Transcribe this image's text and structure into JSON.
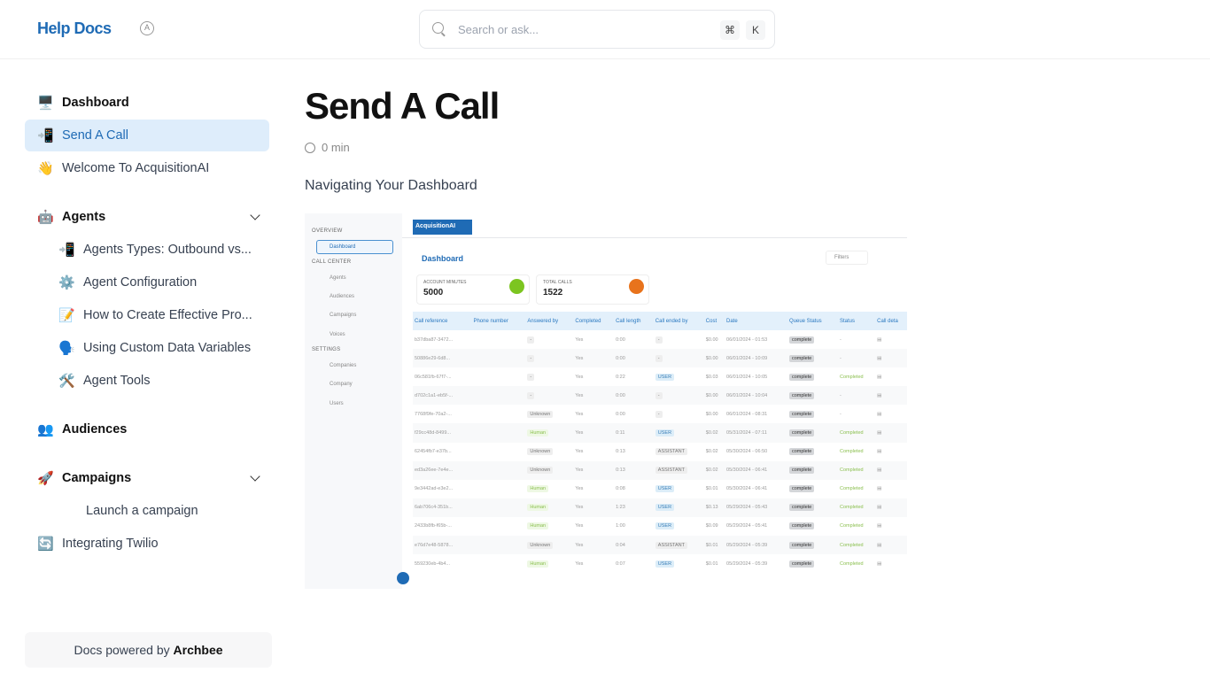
{
  "header": {
    "logo": "Help Docs",
    "search_placeholder": "Search or ask...",
    "kbd_cmd": "⌘",
    "kbd_k": "K"
  },
  "sidebar": {
    "items": [
      {
        "emoji": "🖥️",
        "label": "Dashboard",
        "type": "b"
      },
      {
        "emoji": "📲",
        "label": "Send A Call",
        "type": "active"
      },
      {
        "emoji": "👋",
        "label": "Welcome To AcquisitionAI",
        "type": ""
      },
      {
        "emoji": "🤖",
        "label": "Agents",
        "type": "b",
        "chevron": true,
        "gap": true
      },
      {
        "emoji": "📲",
        "label": "Agents Types: Outbound vs...",
        "type": "sub"
      },
      {
        "emoji": "⚙️",
        "label": "Agent Configuration",
        "type": "sub"
      },
      {
        "emoji": "📝",
        "label": "How to Create Effective Pro...",
        "type": "sub"
      },
      {
        "emoji": "🗣️",
        "label": "Using Custom Data Variables",
        "type": "sub"
      },
      {
        "emoji": "🛠️",
        "label": "Agent Tools",
        "type": "sub"
      },
      {
        "emoji": "👥",
        "label": "Audiences",
        "type": "b",
        "gap": true
      },
      {
        "emoji": "🚀",
        "label": "Campaigns",
        "type": "b",
        "chevron": true,
        "gap": true
      },
      {
        "emoji": "",
        "label": "Launch a campaign",
        "type": "sub2"
      },
      {
        "emoji": "🔄",
        "label": "Integrating Twilio",
        "type": ""
      }
    ]
  },
  "footer": {
    "prefix": "Docs powered by",
    "brand": "Archbee"
  },
  "article": {
    "title": "Send A Call",
    "read_time": "0 min",
    "intro": "Navigating Your Dashboard"
  },
  "screenshot": {
    "logo": "AcquisitionAI",
    "sections": {
      "overview": "OVERVIEW",
      "call_center": "CALL CENTER",
      "settings": "SETTINGS"
    },
    "nav": {
      "dashboard": "Dashboard",
      "agents": "Agents",
      "audiences": "Audiences",
      "campaigns": "Campaigns",
      "voices": "Voices",
      "companies": "Companies",
      "company": "Company",
      "users": "Users"
    },
    "title": "Dashboard",
    "filters": "Filters",
    "cards": [
      {
        "label": "ACCOUNT MINUTES",
        "value": "5000",
        "color": "#7cc520"
      },
      {
        "label": "TOTAL CALLS",
        "value": "1522",
        "color": "#e8731c"
      }
    ],
    "columns": [
      "Call reference",
      "Phone number",
      "Answered by",
      "Completed",
      "Call length",
      "Call ended by",
      "Cost",
      "Date",
      "Queue Status",
      "Status",
      "Call deta"
    ],
    "rows": [
      [
        "b37dba87-3472...",
        "",
        "-",
        "Yes",
        "0:00",
        "-",
        "$0.00",
        "06/01/2024 - 01:53",
        "complete",
        "-"
      ],
      [
        "50886e29-6d8...",
        "",
        "-",
        "Yes",
        "0:00",
        "-",
        "$0.00",
        "06/01/2024 - 10:09",
        "complete",
        "-"
      ],
      [
        "06c581fb-67f7-...",
        "",
        "-",
        "Yes",
        "0:22",
        "USER",
        "$0.03",
        "06/01/2024 - 10:05",
        "complete",
        "Completed"
      ],
      [
        "d702c1a1-eb5f-...",
        "",
        "-",
        "Yes",
        "0:00",
        "-",
        "$0.00",
        "06/01/2024 - 10:04",
        "complete",
        "-"
      ],
      [
        "7768f9fe-70a2-...",
        "",
        "Unknown",
        "Yes",
        "0:00",
        "-",
        "$0.00",
        "06/01/2024 - 08:31",
        "complete",
        "-"
      ],
      [
        "f29cc48d-8499...",
        "",
        "Human",
        "Yes",
        "0:11",
        "USER",
        "$0.02",
        "05/31/2024 - 07:11",
        "complete",
        "Completed"
      ],
      [
        "62454fb7-e37b...",
        "",
        "Unknown",
        "Yes",
        "0:13",
        "ASSISTANT",
        "$0.02",
        "05/30/2024 - 06:50",
        "complete",
        "Completed"
      ],
      [
        "ed3a26ee-7e4e...",
        "",
        "Unknown",
        "Yes",
        "0:13",
        "ASSISTANT",
        "$0.02",
        "05/30/2024 - 06:41",
        "complete",
        "Completed"
      ],
      [
        "9e3442ad-e3e2...",
        "",
        "Human",
        "Yes",
        "0:08",
        "USER",
        "$0.01",
        "05/30/2024 - 06:41",
        "complete",
        "Completed"
      ],
      [
        "6ab706c4-351b...",
        "",
        "Human",
        "Yes",
        "1:23",
        "USER",
        "$0.13",
        "05/29/2024 - 05:43",
        "complete",
        "Completed"
      ],
      [
        "2433b8fb-f65b-...",
        "",
        "Human",
        "Yes",
        "1:00",
        "USER",
        "$0.09",
        "05/29/2024 - 05:41",
        "complete",
        "Completed"
      ],
      [
        "e76d7e48-5878...",
        "",
        "Unknown",
        "Yes",
        "0:04",
        "ASSISTANT",
        "$0.01",
        "05/29/2024 - 05:39",
        "complete",
        "Completed"
      ],
      [
        "559230eb-4b4...",
        "",
        "Human",
        "Yes",
        "0:07",
        "USER",
        "$0.01",
        "05/29/2024 - 05:39",
        "complete",
        "Completed"
      ]
    ]
  }
}
